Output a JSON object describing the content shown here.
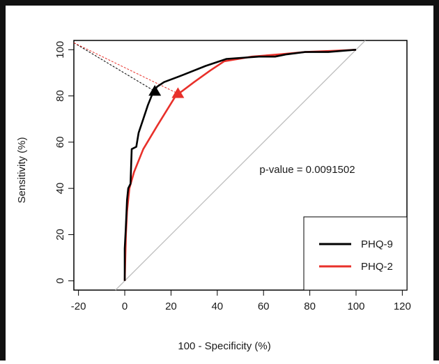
{
  "chart_data": {
    "type": "line",
    "title": "",
    "xlabel": "100 - Specificity (%)",
    "ylabel": "Sensitivity (%)",
    "xlim": [
      -22,
      122
    ],
    "ylim": [
      -4,
      104
    ],
    "x_ticks": [
      -20,
      0,
      20,
      40,
      60,
      80,
      100,
      120
    ],
    "y_ticks": [
      0,
      20,
      40,
      60,
      80,
      100
    ],
    "grid": false,
    "legend": "bottom-right",
    "annotation": "p-value = 0.0091502",
    "reference_line": {
      "from": [
        -4,
        -4
      ],
      "to": [
        104,
        104
      ],
      "color": "#bdbdbd"
    },
    "series": [
      {
        "name": "PHQ-9",
        "color": "#000000",
        "points": [
          [
            0,
            0
          ],
          [
            0,
            14
          ],
          [
            0.4,
            22
          ],
          [
            1,
            35
          ],
          [
            1.5,
            40
          ],
          [
            2.5,
            42
          ],
          [
            3,
            57
          ],
          [
            5,
            58
          ],
          [
            6,
            64
          ],
          [
            8,
            70
          ],
          [
            10,
            76
          ],
          [
            12,
            81
          ],
          [
            14,
            84
          ],
          [
            17,
            86
          ],
          [
            25,
            89
          ],
          [
            35,
            93
          ],
          [
            44,
            96
          ],
          [
            58,
            97
          ],
          [
            65,
            97
          ],
          [
            70,
            98
          ],
          [
            78,
            99
          ],
          [
            88,
            99
          ],
          [
            100,
            100
          ]
        ],
        "cutoff": [
          13,
          82
        ]
      },
      {
        "name": "PHQ-2",
        "color": "#e8302a",
        "points": [
          [
            0,
            0
          ],
          [
            0.5,
            20
          ],
          [
            1,
            30
          ],
          [
            2,
            40
          ],
          [
            4,
            47
          ],
          [
            8,
            57
          ],
          [
            14,
            67
          ],
          [
            22,
            80
          ],
          [
            30,
            86
          ],
          [
            37,
            91
          ],
          [
            43,
            95
          ],
          [
            55,
            97
          ],
          [
            67,
            98
          ],
          [
            78,
            99
          ],
          [
            90,
            99.5
          ],
          [
            100,
            100
          ]
        ],
        "cutoff": [
          23,
          81
        ]
      }
    ],
    "cutoff_lines": [
      {
        "series": "PHQ-9",
        "from": [
          -22,
          103
        ],
        "to": [
          13,
          82
        ],
        "color": "#000000"
      },
      {
        "series": "PHQ-2",
        "from": [
          -22,
          103
        ],
        "to": [
          23,
          81
        ],
        "color": "#e8302a"
      }
    ]
  }
}
